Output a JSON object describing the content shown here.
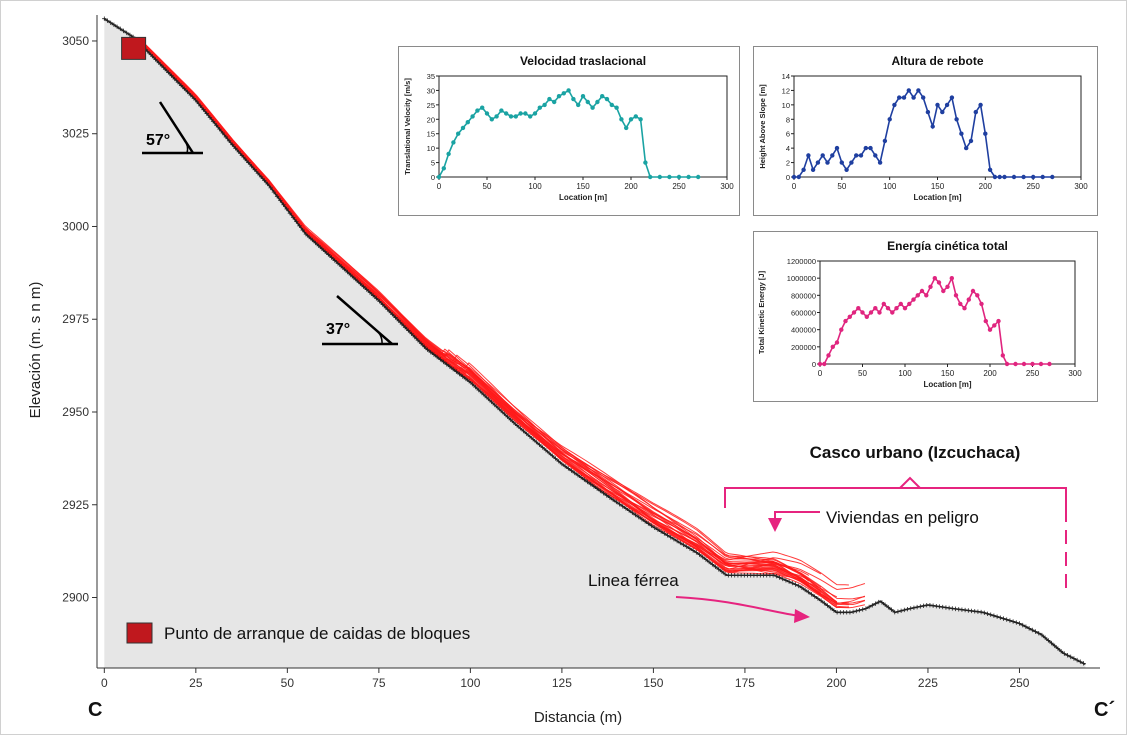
{
  "colors": {
    "ground": "#e6e6e6",
    "profile": "#222222",
    "trajectories": "#ff1a1a",
    "start_marker": "#c0181e",
    "annotation": "#e6247f",
    "velocity": "#1aa3a3",
    "height": "#1f3fa0",
    "energy": "#e0257f"
  },
  "main_chart": {
    "xlabel": "Distancia (m)",
    "ylabel": "Elevación (m. s n m)",
    "x_ticks": [
      "0",
      "25",
      "50",
      "75",
      "100",
      "125",
      "150",
      "175",
      "200",
      "225",
      "250"
    ],
    "y_ticks": [
      "3050",
      "3025",
      "3000",
      "2975",
      "2950",
      "2925",
      "2900"
    ],
    "left_corner_label": "C",
    "right_corner_label": "C´",
    "angle_upper": "57°",
    "angle_lower": "37°",
    "urban_label": "Casco urbano (Izcuchaca)",
    "homes_label": "Viviendas en peligro",
    "rail_label": "Linea férrea",
    "legend_label": "Punto de arranque de caidas de bloques"
  },
  "chart_data": [
    {
      "type": "area",
      "name": "main-profile",
      "xlabel": "Distancia (m)",
      "ylabel": "Elevación (m. s n m)",
      "xlim": [
        -2,
        272
      ],
      "ylim": [
        2881,
        3057
      ],
      "x": [
        0,
        8,
        15,
        25,
        35,
        45,
        55,
        65,
        75,
        88,
        100,
        112,
        125,
        138,
        150,
        162,
        170,
        177,
        183,
        190,
        196,
        200,
        204,
        208,
        212,
        216,
        220,
        225,
        232,
        240,
        250,
        256,
        262,
        268
      ],
      "y": [
        3056,
        3051,
        3044,
        3034,
        3022,
        3011,
        2998,
        2989,
        2980,
        2967,
        2958,
        2947,
        2936,
        2927,
        2919,
        2912,
        2906,
        2906,
        2906,
        2903,
        2899,
        2896,
        2896,
        2897,
        2899,
        2896,
        2897,
        2898,
        2897,
        2896,
        2893,
        2890,
        2885,
        2882
      ],
      "start_point": {
        "x": 8,
        "y": 3048
      }
    },
    {
      "type": "line",
      "title": "Velocidad traslacional",
      "xlabel": "Location [m]",
      "ylabel": "Translational Velocity [m/s]",
      "xlim": [
        0,
        300
      ],
      "ylim": [
        0,
        35
      ],
      "x_ticks": [
        "0",
        "50",
        "100",
        "150",
        "200",
        "250",
        "300"
      ],
      "y_ticks": [
        "0",
        "5",
        "10",
        "15",
        "20",
        "25",
        "30",
        "35"
      ],
      "x": [
        0,
        5,
        10,
        15,
        20,
        25,
        30,
        35,
        40,
        45,
        50,
        55,
        60,
        65,
        70,
        75,
        80,
        85,
        90,
        95,
        100,
        105,
        110,
        115,
        120,
        125,
        130,
        135,
        140,
        145,
        150,
        155,
        160,
        165,
        170,
        175,
        180,
        185,
        190,
        195,
        200,
        205,
        210,
        215,
        220,
        230,
        240,
        250,
        260,
        270
      ],
      "y": [
        0,
        3,
        8,
        12,
        15,
        17,
        19,
        21,
        23,
        24,
        22,
        20,
        21,
        23,
        22,
        21,
        21,
        22,
        22,
        21,
        22,
        24,
        25,
        27,
        26,
        28,
        29,
        30,
        27,
        25,
        28,
        26,
        24,
        26,
        28,
        27,
        25,
        24,
        20,
        17,
        20,
        21,
        20,
        5,
        0,
        0,
        0,
        0,
        0,
        0
      ]
    },
    {
      "type": "line",
      "title": "Altura de rebote",
      "xlabel": "Location [m]",
      "ylabel": "Height Above Slope [m]",
      "xlim": [
        0,
        300
      ],
      "ylim": [
        0,
        14
      ],
      "x_ticks": [
        "0",
        "50",
        "100",
        "150",
        "200",
        "250",
        "300"
      ],
      "y_ticks": [
        "0",
        "2",
        "4",
        "6",
        "8",
        "10",
        "12",
        "14"
      ],
      "x": [
        0,
        5,
        10,
        15,
        20,
        25,
        30,
        35,
        40,
        45,
        50,
        55,
        60,
        65,
        70,
        75,
        80,
        85,
        90,
        95,
        100,
        105,
        110,
        115,
        120,
        125,
        130,
        135,
        140,
        145,
        150,
        155,
        160,
        165,
        170,
        175,
        180,
        185,
        190,
        195,
        200,
        205,
        210,
        215,
        220,
        230,
        240,
        250,
        260,
        270
      ],
      "y": [
        0,
        0,
        1,
        3,
        1,
        2,
        3,
        2,
        3,
        4,
        2,
        1,
        2,
        3,
        3,
        4,
        4,
        3,
        2,
        5,
        8,
        10,
        11,
        11,
        12,
        11,
        12,
        11,
        9,
        7,
        10,
        9,
        10,
        11,
        8,
        6,
        4,
        5,
        9,
        10,
        6,
        1,
        0,
        0,
        0,
        0,
        0,
        0,
        0,
        0
      ]
    },
    {
      "type": "line",
      "title": "Energía cinética total",
      "xlabel": "Location [m]",
      "ylabel": "Total Kinetic Energy [J]",
      "xlim": [
        0,
        300
      ],
      "ylim": [
        0,
        1200000
      ],
      "x_ticks": [
        "0",
        "50",
        "100",
        "150",
        "200",
        "250",
        "300"
      ],
      "y_ticks": [
        "0",
        "200000",
        "400000",
        "600000",
        "800000",
        "1000000",
        "1200000"
      ],
      "x": [
        0,
        5,
        10,
        15,
        20,
        25,
        30,
        35,
        40,
        45,
        50,
        55,
        60,
        65,
        70,
        75,
        80,
        85,
        90,
        95,
        100,
        105,
        110,
        115,
        120,
        125,
        130,
        135,
        140,
        145,
        150,
        155,
        160,
        165,
        170,
        175,
        180,
        185,
        190,
        195,
        200,
        205,
        210,
        215,
        220,
        230,
        240,
        250,
        260,
        270
      ],
      "y": [
        0,
        0,
        100000,
        200000,
        250000,
        400000,
        500000,
        550000,
        600000,
        650000,
        600000,
        550000,
        600000,
        650000,
        600000,
        700000,
        650000,
        600000,
        650000,
        700000,
        650000,
        700000,
        750000,
        800000,
        850000,
        800000,
        900000,
        1000000,
        950000,
        850000,
        900000,
        1000000,
        800000,
        700000,
        650000,
        750000,
        850000,
        800000,
        700000,
        500000,
        400000,
        450000,
        500000,
        100000,
        0,
        0,
        0,
        0,
        0,
        0
      ]
    }
  ]
}
